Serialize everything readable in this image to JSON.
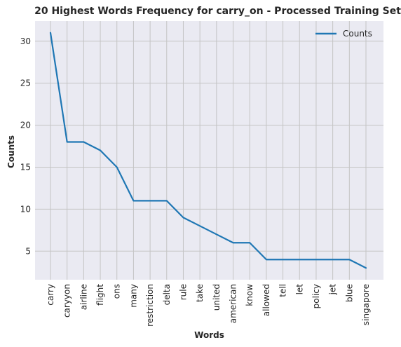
{
  "chart_data": {
    "type": "line",
    "title": "20 Highest Words Frequency for carry_on - Processed Training Set",
    "xlabel": "Words",
    "ylabel": "Counts",
    "categories": [
      "carry",
      "caryyon",
      "airline",
      "flight",
      "ons",
      "many",
      "restriction",
      "delta",
      "rule",
      "take",
      "united",
      "american",
      "know",
      "allowed",
      "tell",
      "let",
      "policy",
      "jet",
      "blue",
      "singapore"
    ],
    "series": [
      {
        "name": "Counts",
        "values": [
          31,
          18,
          18,
          17,
          15,
          11,
          11,
          11,
          9,
          8,
          7,
          6,
          6,
          4,
          4,
          4,
          4,
          4,
          4,
          3
        ],
        "color": "#1f77b4"
      }
    ],
    "ylim": [
      1.6,
      32.4
    ],
    "yticks": [
      5,
      10,
      15,
      20,
      25,
      30
    ],
    "grid": true,
    "legend": "top-right",
    "background": "#eaeaf2",
    "grid_color": "#c4c4c4"
  }
}
